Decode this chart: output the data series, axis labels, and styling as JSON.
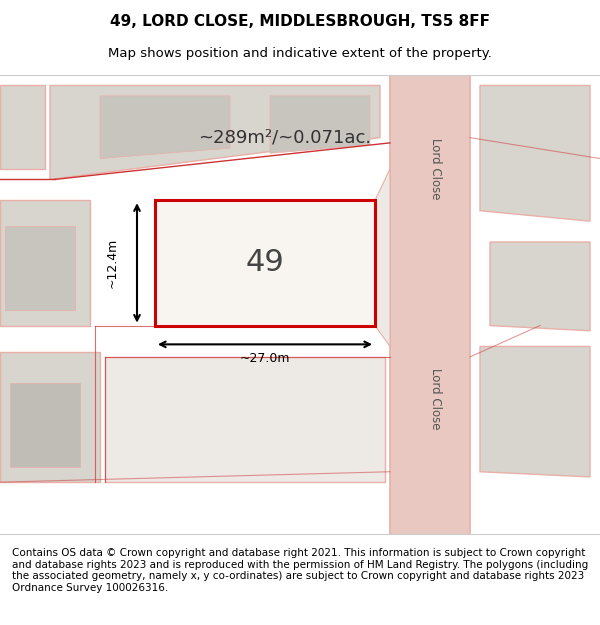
{
  "title_line1": "49, LORD CLOSE, MIDDLESBROUGH, TS5 8FF",
  "title_line2": "Map shows position and indicative extent of the property.",
  "footer_text": "Contains OS data © Crown copyright and database right 2021. This information is subject to Crown copyright and database rights 2023 and is reproduced with the permission of HM Land Registry. The polygons (including the associated geometry, namely x, y co-ordinates) are subject to Crown copyright and database rights 2023 Ordnance Survey 100026316.",
  "area_label": "~289m²/~0.071ac.",
  "plot_number": "49",
  "dim_width": "~27.0m",
  "dim_height": "~12.4m",
  "bg_color": "#f0ede8",
  "map_bg": "#f5f2ee",
  "plot_fill": "#f5f2ee",
  "plot_border": "#cc0000",
  "road_color": "#e8c8c0",
  "building_fill": "#d8d4ce",
  "road_line_color": "#e8b0a8",
  "street_label": "Lord Close",
  "title_fontsize": 11,
  "subtitle_fontsize": 9.5,
  "footer_fontsize": 7.5
}
